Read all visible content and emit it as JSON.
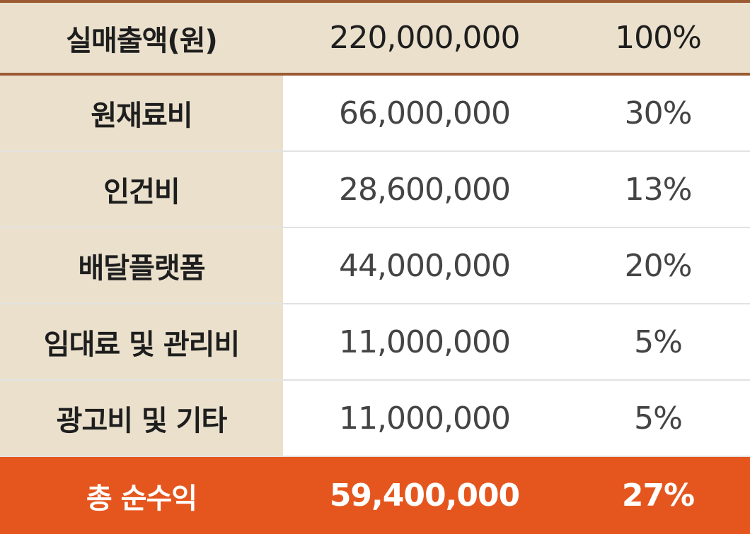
{
  "table": {
    "header": [
      "실매출액(원)",
      "220,000,000",
      "100%"
    ],
    "rows": [
      [
        "원재료비",
        "66,000,000",
        "30%"
      ],
      [
        "인건비",
        "28,600,000",
        "13%"
      ],
      [
        "배달플랫폼",
        "44,000,000",
        "20%"
      ],
      [
        "임대료 및 관리비",
        "11,000,000",
        "5%"
      ],
      [
        "광고비 및 기타",
        "11,000,000",
        "5%"
      ]
    ],
    "footer": [
      "총 순수익",
      "59,400,000",
      "27%"
    ]
  }
}
